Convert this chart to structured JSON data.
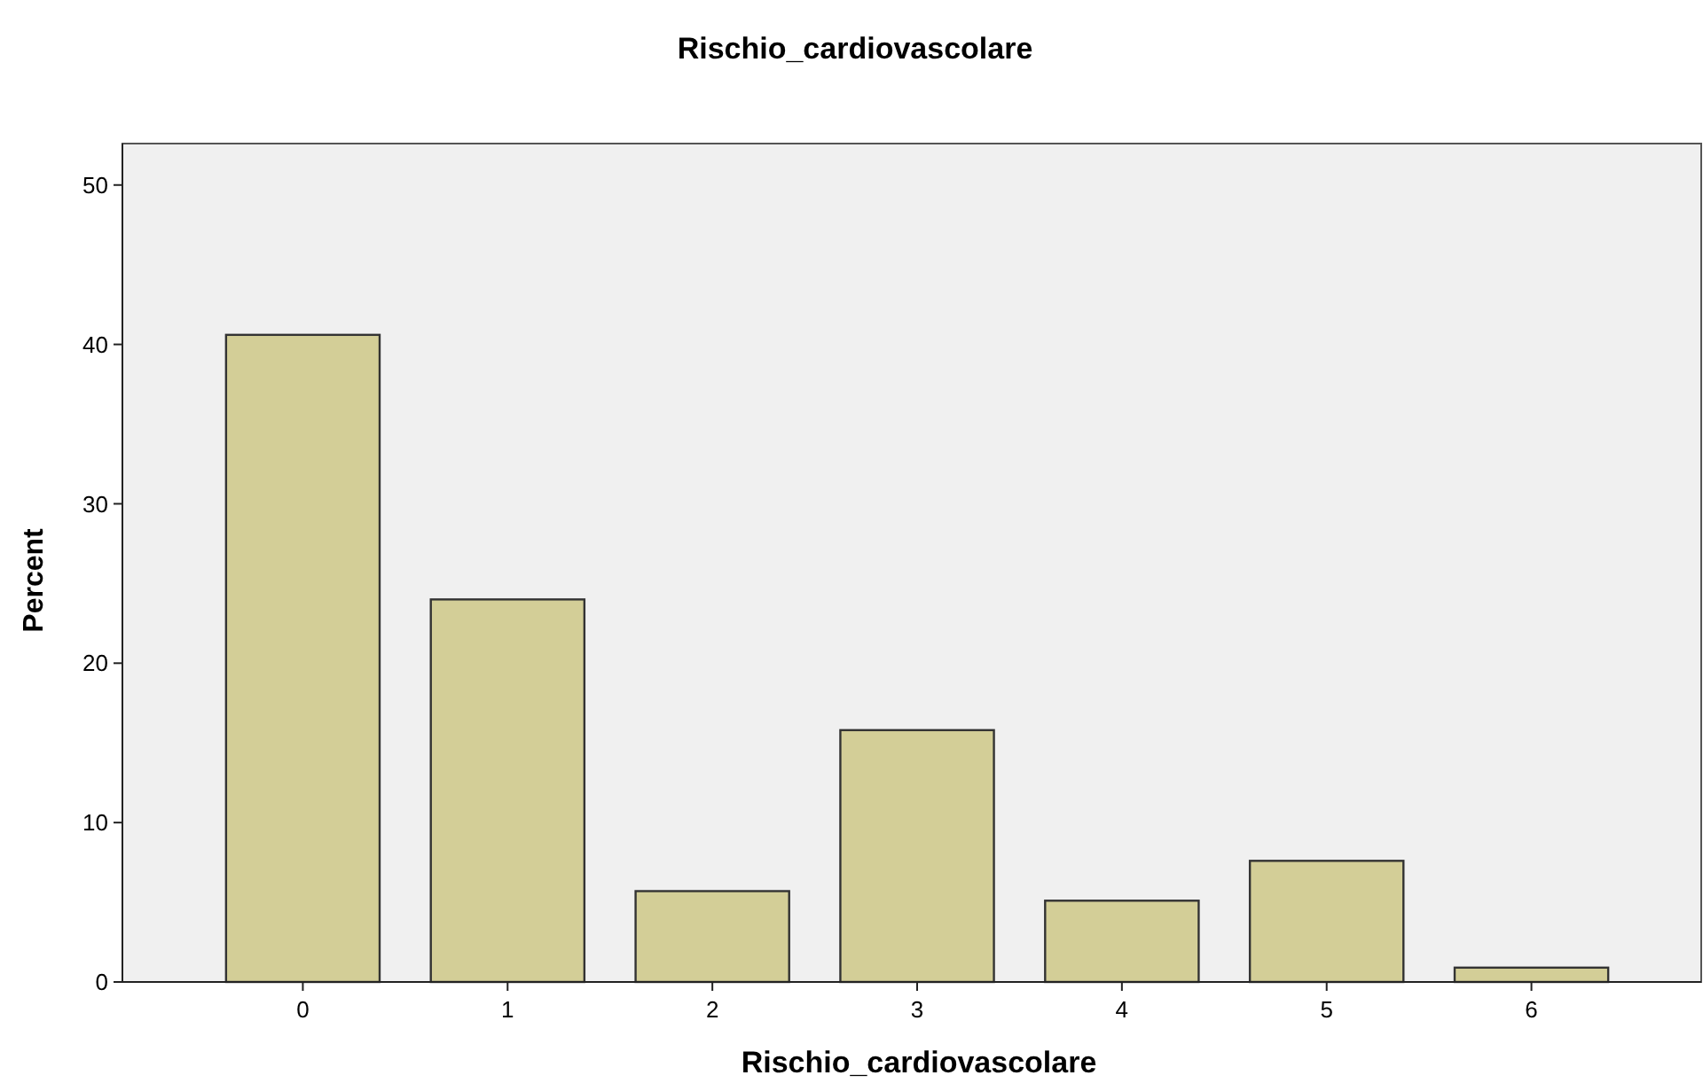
{
  "chart_data": {
    "type": "bar",
    "title": "Rischio_cardiovascolare",
    "xlabel": "Rischio_cardiovascolare",
    "ylabel": "Percent",
    "categories": [
      "0",
      "1",
      "2",
      "3",
      "4",
      "5",
      "6"
    ],
    "values": [
      40.6,
      24.0,
      5.7,
      15.8,
      5.1,
      7.6,
      0.9
    ],
    "color": "#d3ce97",
    "ylim": [
      0,
      52.6
    ],
    "yticks": [
      0,
      10,
      20,
      30,
      40,
      50
    ],
    "grid": false
  }
}
